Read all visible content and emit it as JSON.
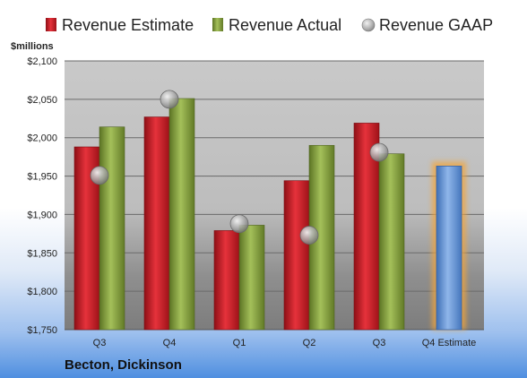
{
  "chart_data": {
    "type": "bar",
    "title": "",
    "ylabel": "$millions",
    "xlabel": "",
    "footer": "Becton, Dickinson",
    "categories": [
      "Q3",
      "Q4",
      "Q1",
      "Q2",
      "Q3",
      "Q4 Estimate"
    ],
    "ylim": [
      1750,
      2100
    ],
    "yticks": [
      1750,
      1800,
      1850,
      1900,
      1950,
      2000,
      2050,
      2100
    ],
    "ytick_labels": [
      "$1,750",
      "$1,800",
      "$1,850",
      "$1,900",
      "$1,950",
      "$2,000",
      "$2,050",
      "$2,100"
    ],
    "grid": true,
    "legend_position": "top",
    "series": [
      {
        "name": "Revenue Estimate",
        "color": "#c8202b",
        "values": [
          1988,
          2027,
          1879,
          1944,
          2019,
          null
        ]
      },
      {
        "name": "Revenue Actual",
        "color": "#8aa63e",
        "values": [
          2014,
          2051,
          1886,
          1990,
          1979,
          null
        ]
      },
      {
        "name": "Revenue GAAP",
        "color": "#b8b8b8",
        "values": [
          1951,
          2050,
          1888,
          1873,
          1981,
          null
        ]
      }
    ],
    "estimate": {
      "category_index": 5,
      "value": 1963,
      "color": "#6d9fdc",
      "glow": "#f3a53a"
    }
  }
}
